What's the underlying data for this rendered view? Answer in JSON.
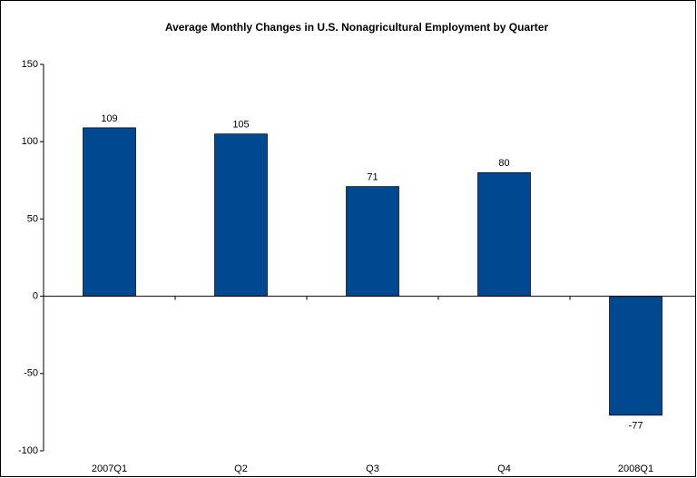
{
  "chart_data": {
    "type": "bar",
    "title": "Average Monthly Changes in U.S. Nonagricultural Employment by Quarter",
    "categories": [
      "2007Q1",
      "Q2",
      "Q3",
      "Q4",
      "2008Q1"
    ],
    "values": [
      109,
      105,
      71,
      80,
      -77
    ],
    "color": "#004990",
    "ylim": [
      -100,
      150
    ],
    "yticks": [
      -100,
      -50,
      0,
      50,
      100,
      150
    ],
    "grid": false
  }
}
